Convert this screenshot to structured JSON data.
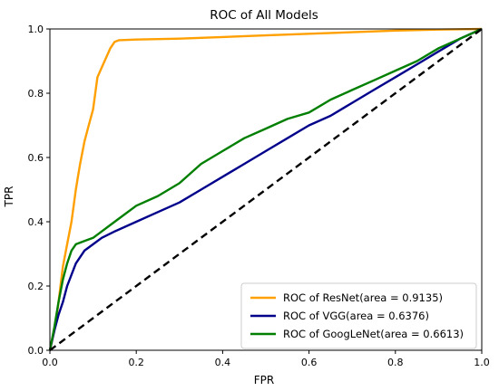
{
  "chart_data": {
    "type": "line",
    "title": "ROC of All Models",
    "xlabel": "FPR",
    "ylabel": "TPR",
    "xlim": [
      0.0,
      1.0
    ],
    "ylim": [
      0.0,
      1.0
    ],
    "xticks": [
      "0.0",
      "0.2",
      "0.4",
      "0.6",
      "0.8",
      "1.0"
    ],
    "yticks": [
      "0.0",
      "0.2",
      "0.4",
      "0.6",
      "0.8",
      "1.0"
    ],
    "grid": false,
    "legend_position": "lower-right",
    "series": [
      {
        "name": "ROC of ResNet(area = 0.9135)",
        "color": "#ff9f00",
        "style": "solid",
        "x": [
          0.0,
          0.005,
          0.01,
          0.015,
          0.02,
          0.03,
          0.04,
          0.05,
          0.06,
          0.065,
          0.07,
          0.08,
          0.09,
          0.1,
          0.105,
          0.11,
          0.12,
          0.13,
          0.14,
          0.15,
          0.16,
          0.2,
          0.3,
          0.4,
          0.5,
          0.6,
          0.7,
          0.8,
          0.9,
          1.0
        ],
        "y": [
          0.0,
          0.03,
          0.06,
          0.1,
          0.15,
          0.26,
          0.33,
          0.4,
          0.5,
          0.54,
          0.58,
          0.65,
          0.7,
          0.75,
          0.8,
          0.85,
          0.88,
          0.91,
          0.94,
          0.96,
          0.965,
          0.967,
          0.97,
          0.975,
          0.98,
          0.985,
          0.99,
          0.995,
          0.998,
          1.0
        ]
      },
      {
        "name": "ROC of VGG(area = 0.6376)",
        "color": "#00008b",
        "style": "solid",
        "x": [
          0.0,
          0.01,
          0.02,
          0.03,
          0.04,
          0.06,
          0.08,
          0.1,
          0.12,
          0.15,
          0.2,
          0.25,
          0.3,
          0.35,
          0.4,
          0.45,
          0.5,
          0.55,
          0.6,
          0.65,
          0.7,
          0.75,
          0.8,
          0.85,
          0.9,
          0.95,
          1.0
        ],
        "y": [
          0.0,
          0.06,
          0.11,
          0.15,
          0.2,
          0.27,
          0.31,
          0.33,
          0.35,
          0.37,
          0.4,
          0.43,
          0.46,
          0.5,
          0.54,
          0.58,
          0.62,
          0.66,
          0.7,
          0.73,
          0.77,
          0.81,
          0.85,
          0.89,
          0.93,
          0.97,
          1.0
        ]
      },
      {
        "name": "ROC of GoogLeNet(area = 0.6613)",
        "color": "#007f00",
        "style": "solid",
        "x": [
          0.0,
          0.01,
          0.02,
          0.03,
          0.04,
          0.05,
          0.06,
          0.08,
          0.1,
          0.12,
          0.15,
          0.2,
          0.25,
          0.3,
          0.35,
          0.4,
          0.45,
          0.5,
          0.55,
          0.6,
          0.65,
          0.7,
          0.75,
          0.8,
          0.85,
          0.9,
          0.95,
          1.0
        ],
        "y": [
          0.0,
          0.07,
          0.15,
          0.22,
          0.27,
          0.31,
          0.33,
          0.34,
          0.35,
          0.37,
          0.4,
          0.45,
          0.48,
          0.52,
          0.58,
          0.62,
          0.66,
          0.69,
          0.72,
          0.74,
          0.78,
          0.81,
          0.84,
          0.87,
          0.9,
          0.94,
          0.97,
          1.0
        ]
      },
      {
        "name": "",
        "color": "#000000",
        "style": "dashed",
        "x": [
          0.0,
          1.0
        ],
        "y": [
          0.0,
          1.0
        ]
      }
    ]
  }
}
